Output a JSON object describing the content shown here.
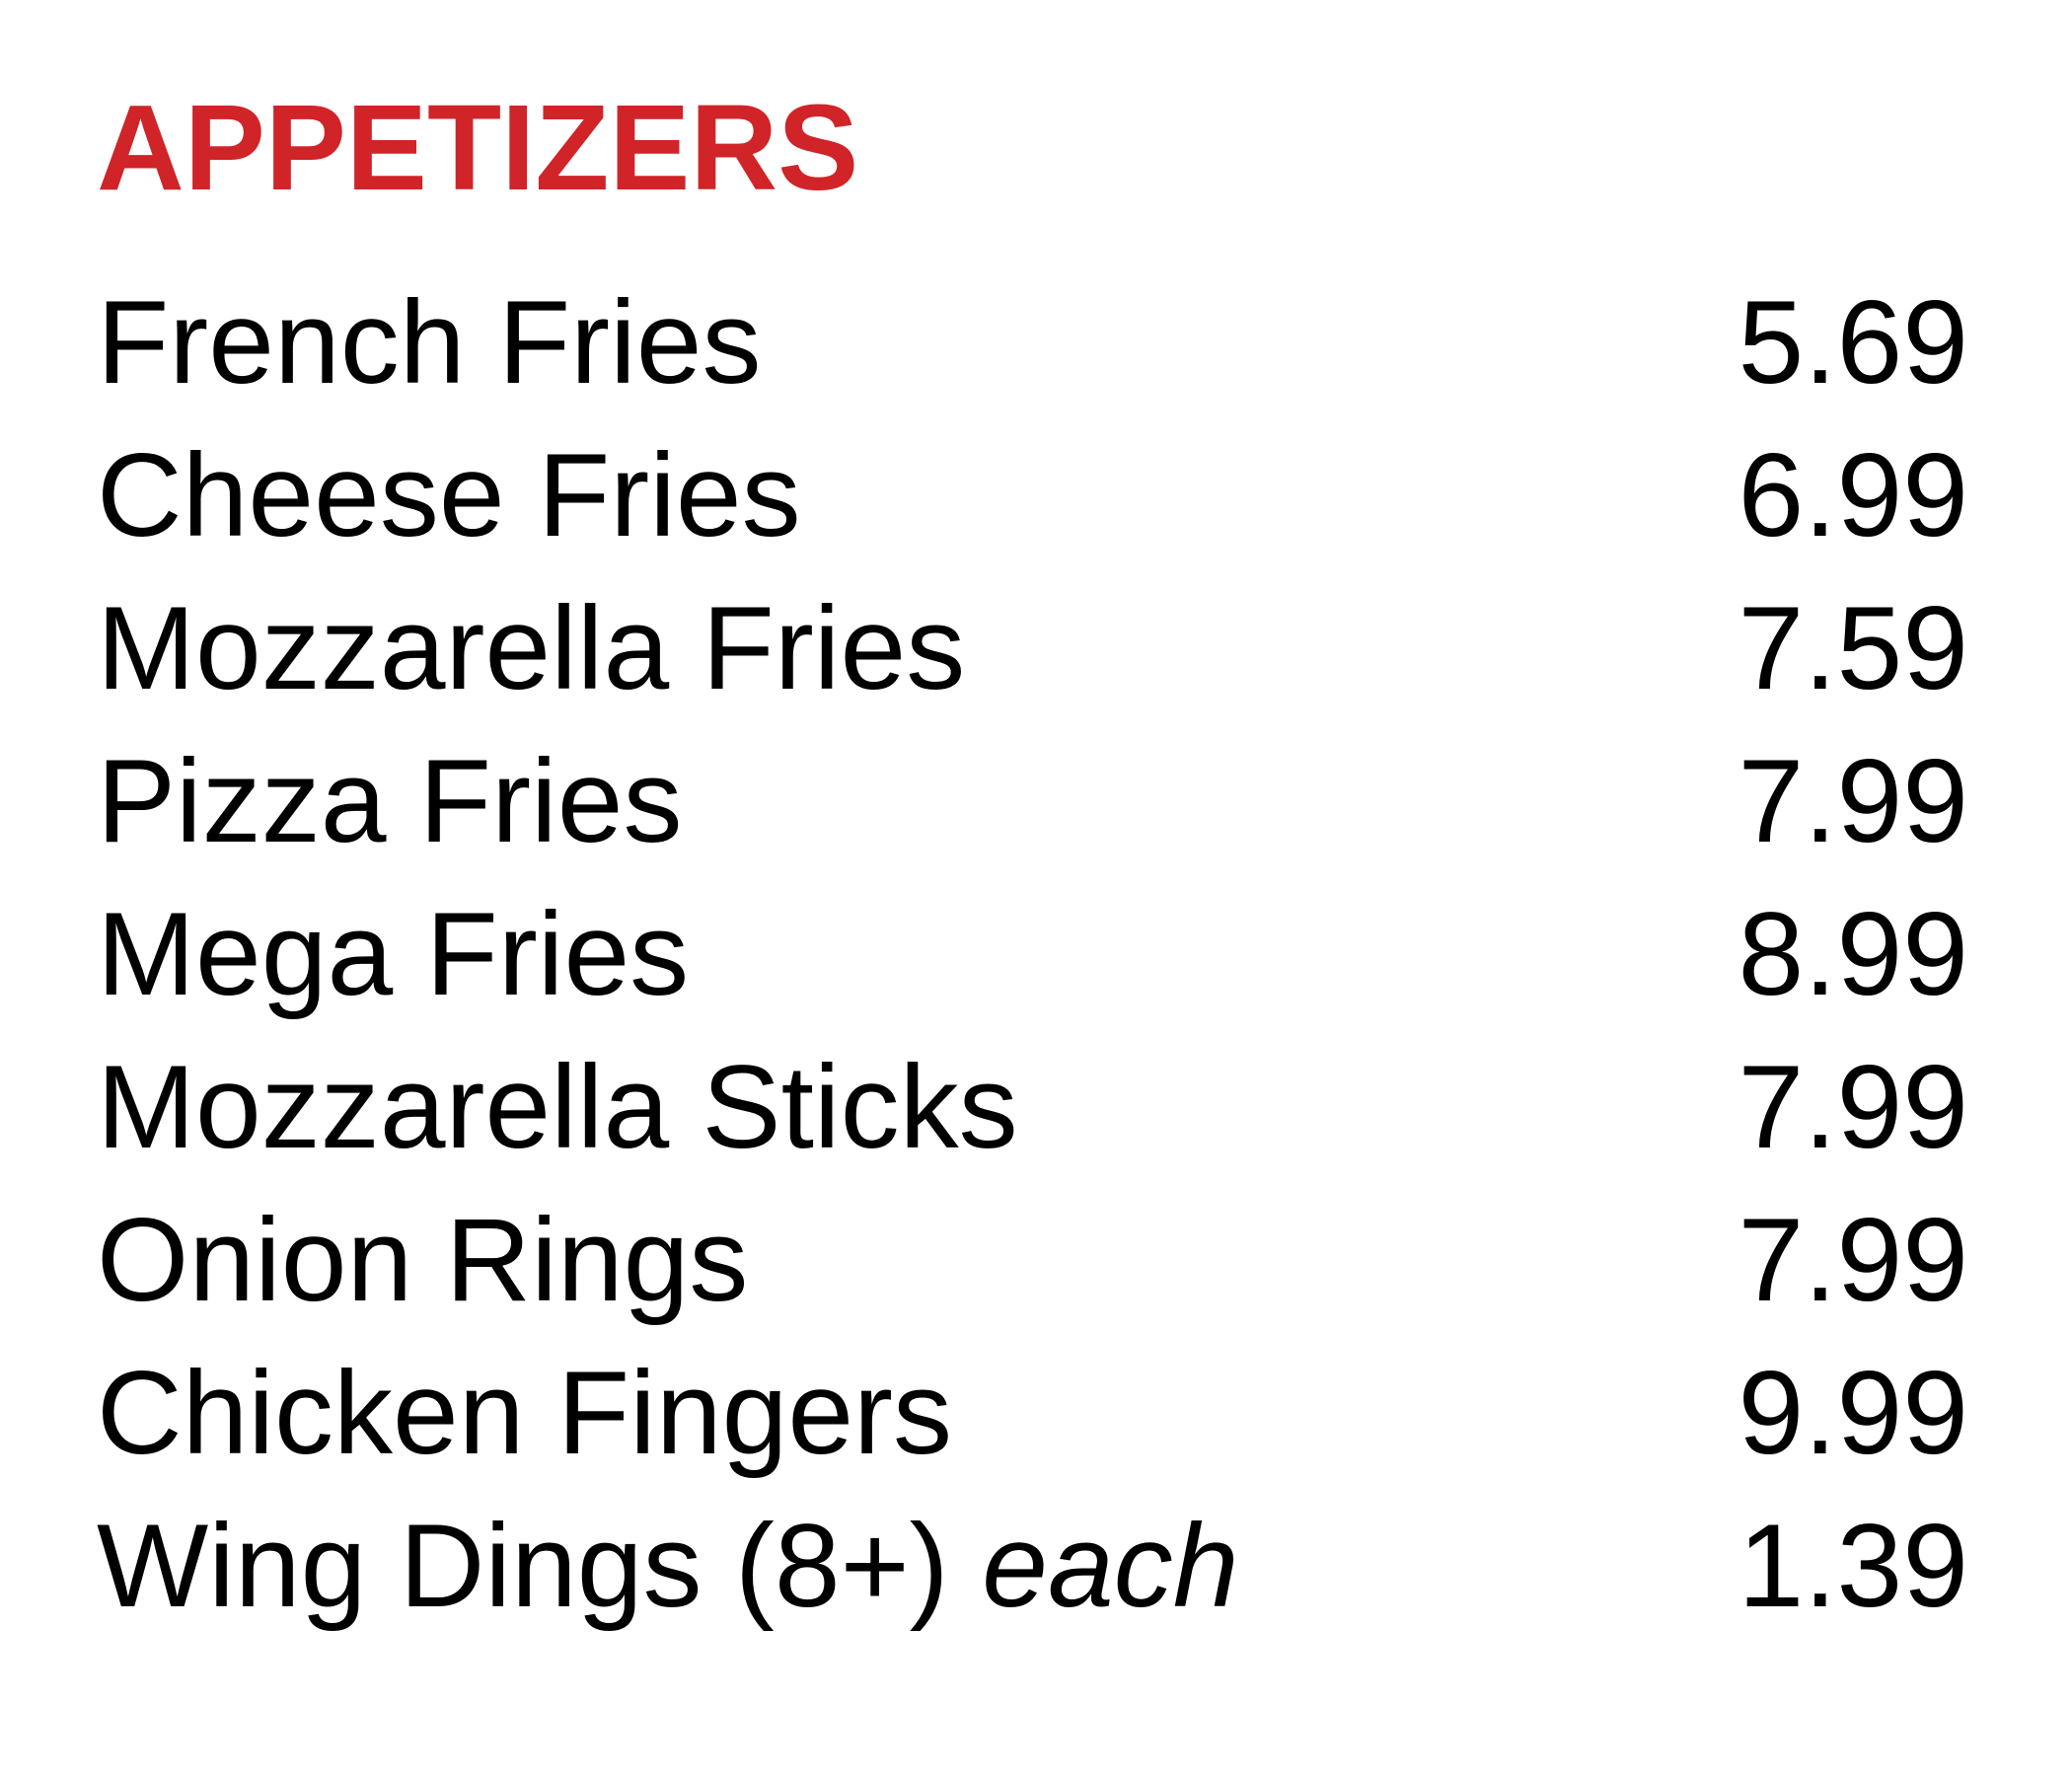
{
  "menu": {
    "section_title": "APPETIZERS",
    "title_color": "#d02428",
    "items": [
      {
        "name": "French Fries",
        "note": "",
        "price": "5.69"
      },
      {
        "name": "Cheese Fries",
        "note": "",
        "price": "6.99"
      },
      {
        "name": "Mozzarella Fries",
        "note": "",
        "price": "7.59"
      },
      {
        "name": "Pizza Fries",
        "note": "",
        "price": "7.99"
      },
      {
        "name": "Mega Fries",
        "note": "",
        "price": "8.99"
      },
      {
        "name": "Mozzarella Sticks",
        "note": "",
        "price": "7.99"
      },
      {
        "name": "Onion Rings",
        "note": "",
        "price": "7.99"
      },
      {
        "name": "Chicken Fingers",
        "note": "",
        "price": "9.99"
      },
      {
        "name": "Wing Dings (8+)",
        "note": "each",
        "price": "1.39"
      }
    ]
  }
}
